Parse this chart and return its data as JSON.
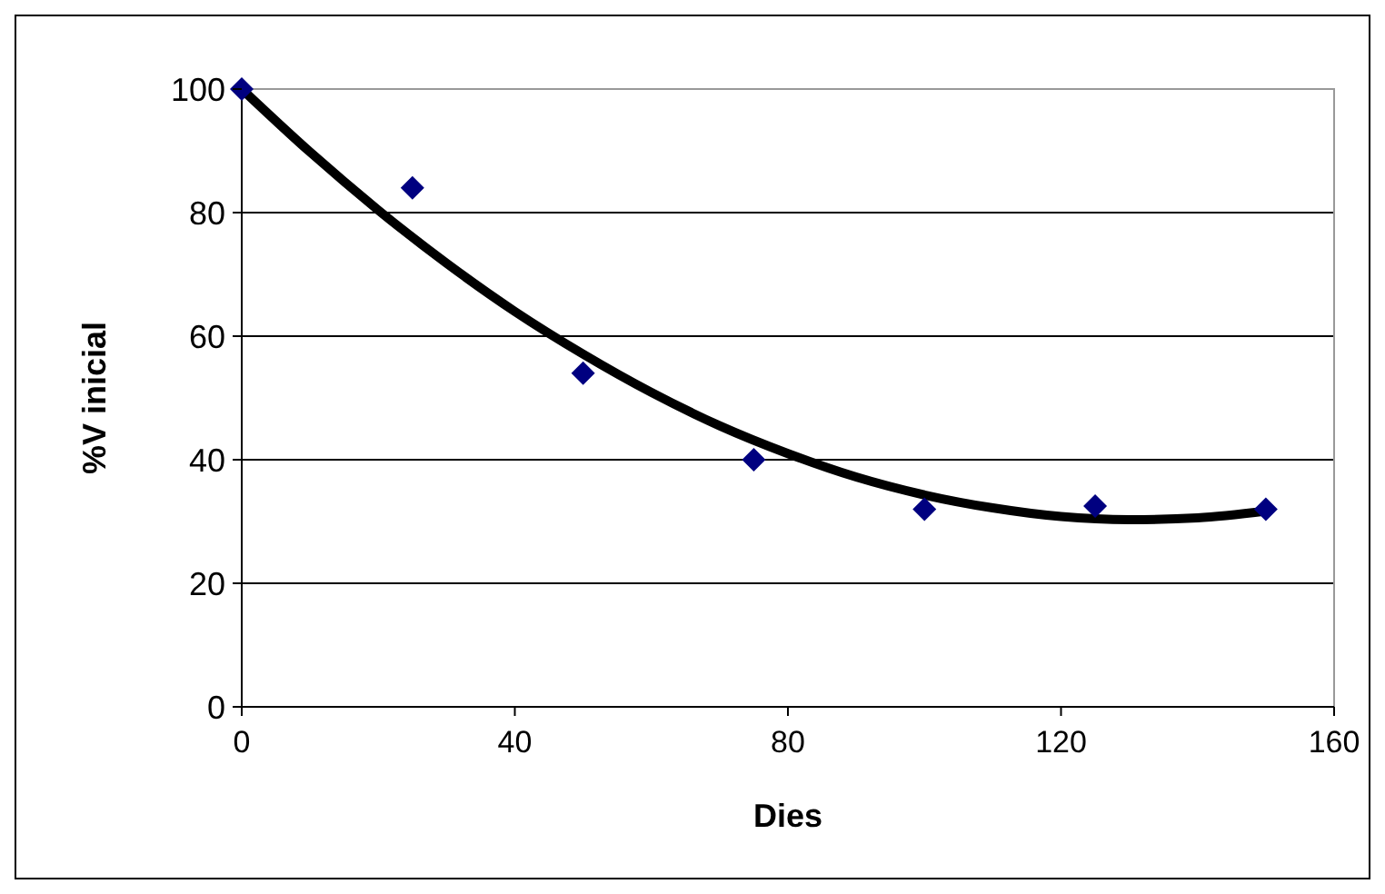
{
  "chart_data": {
    "type": "scatter",
    "xlabel": "Dies",
    "ylabel": "%V inicial",
    "xlim": [
      0,
      160
    ],
    "xticks": [
      0,
      40,
      80,
      120,
      160
    ],
    "ylim": [
      0,
      100
    ],
    "yticks": [
      0,
      20,
      40,
      60,
      80,
      100
    ],
    "grid": "y",
    "series": [
      {
        "color": "#000080",
        "marker": "diamond",
        "x": [
          0,
          25,
          50,
          75,
          100,
          125,
          150
        ],
        "values": [
          100,
          84,
          54,
          40,
          32,
          32.5,
          32
        ]
      },
      {
        "type": "line",
        "color": "#000000",
        "marker": "none",
        "x": [
          0,
          10,
          20,
          30,
          40,
          50,
          60,
          70,
          80,
          90,
          100,
          110,
          120,
          130,
          140,
          150
        ],
        "values": [
          100,
          89.8,
          80.4,
          71.8,
          64.0,
          57.1,
          50.9,
          45.5,
          41.0,
          37.2,
          34.3,
          32.2,
          30.8,
          30.3,
          30.6,
          31.7
        ]
      }
    ]
  }
}
